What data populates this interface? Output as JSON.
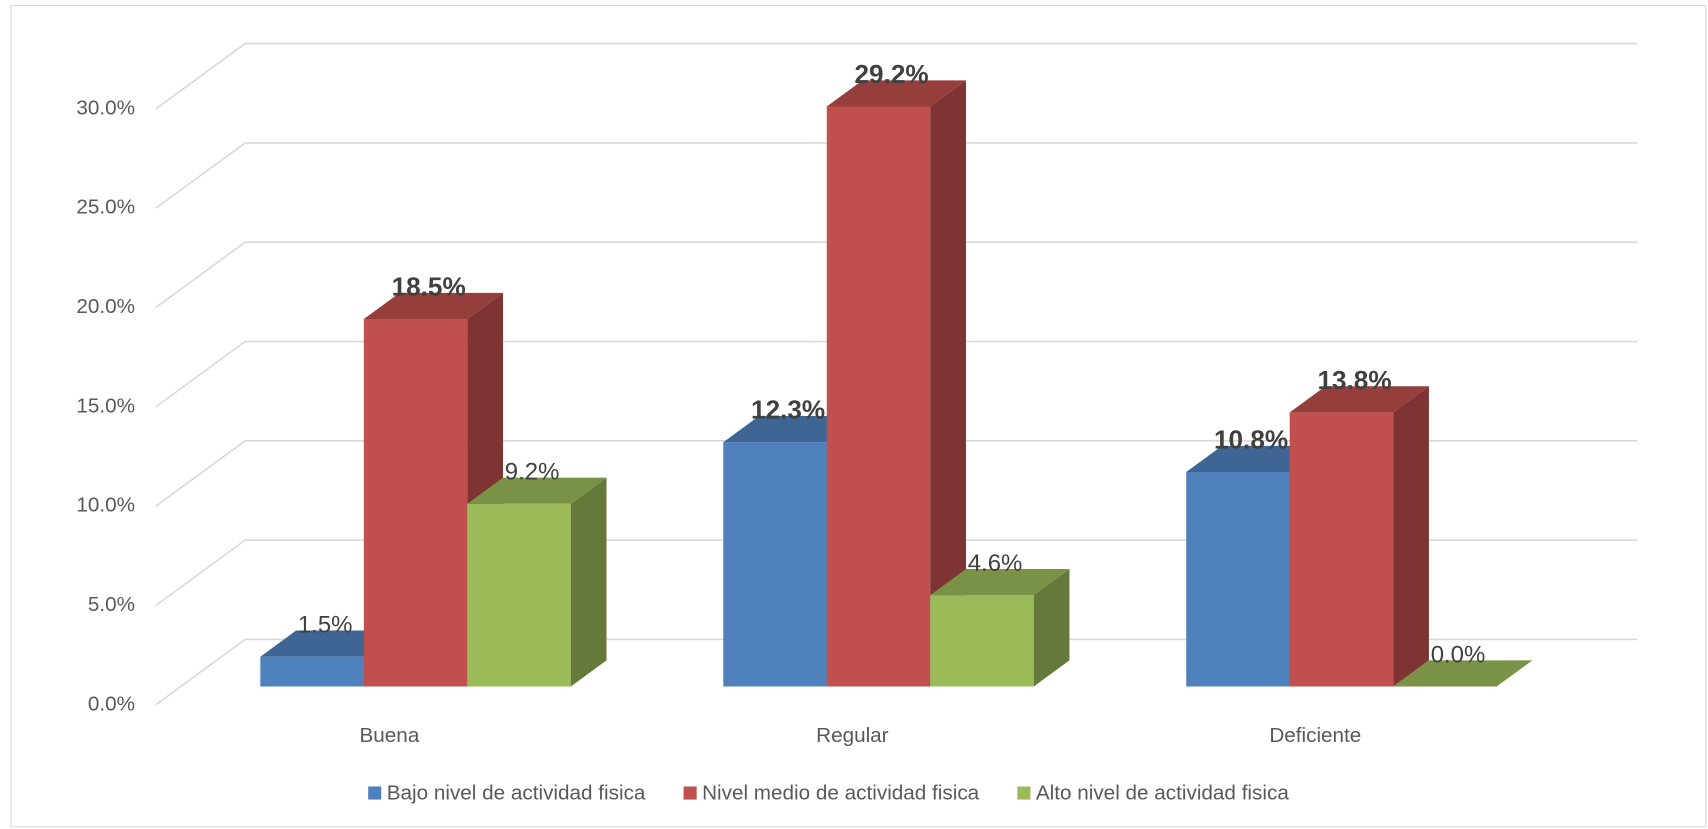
{
  "chart_data": {
    "type": "bar3d",
    "categories": [
      "Buena",
      "Regular",
      "Deficiente"
    ],
    "series": [
      {
        "name": "Bajo nivel de actividad fisica",
        "color": "#4f81bd",
        "values": [
          1.5,
          12.3,
          10.8
        ],
        "value_labels": [
          "1.5%",
          "12.3%",
          "10.8%"
        ]
      },
      {
        "name": "Nivel medio de actividad fisica",
        "color": "#c0504d",
        "values": [
          18.5,
          29.2,
          13.8
        ],
        "value_labels": [
          "18.5%",
          "29.2%",
          "13.8%"
        ]
      },
      {
        "name": "Alto nivel de actividad fisica",
        "color": "#9bbb59",
        "values": [
          9.2,
          4.6,
          0.0
        ],
        "value_labels": [
          "9.2%",
          "4.6%",
          "0.0%"
        ]
      }
    ],
    "ylim": [
      0,
      30
    ],
    "yticks": [
      {
        "value": 0,
        "label": "0.0%"
      },
      {
        "value": 5,
        "label": "5.0%"
      },
      {
        "value": 10,
        "label": "10.0%"
      },
      {
        "value": 15,
        "label": "15.0%"
      },
      {
        "value": 20,
        "label": "20.0%"
      },
      {
        "value": 25,
        "label": "25.0%"
      },
      {
        "value": 30,
        "label": "30.0%"
      }
    ],
    "grid": true,
    "legend": "bottom"
  }
}
